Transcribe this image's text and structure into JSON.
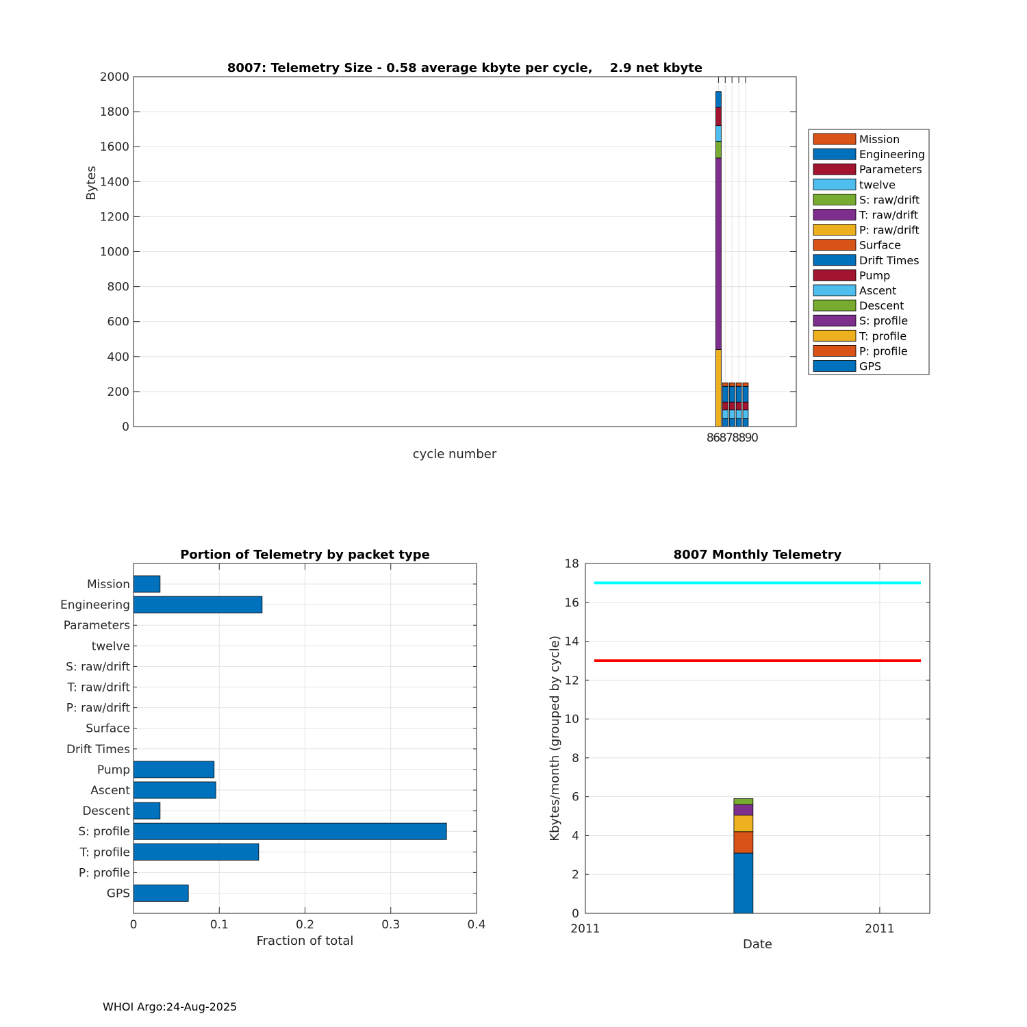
{
  "footer": "WHOI Argo:24-Aug-2025",
  "chart_data": [
    {
      "type": "bar",
      "stacked": true,
      "title": "8007: Telemetry Size - 0.58 average kbyte per cycle,    2.9 net kbyte",
      "xlabel": "cycle number",
      "ylabel": "Bytes",
      "ylim": [
        0,
        2000
      ],
      "yticks": [
        0,
        200,
        400,
        600,
        800,
        1000,
        1200,
        1400,
        1600,
        1800,
        2000
      ],
      "xlim": [
        -0.5,
        97.5
      ],
      "xtick_labels": [
        {
          "x": 86,
          "label": "86"
        },
        {
          "x": 87,
          "label": "87"
        },
        {
          "x": 88,
          "label": "88"
        },
        {
          "x": 89,
          "label": "89"
        },
        {
          "x": 90,
          "label": "90"
        }
      ],
      "xtick_display": "86878890",
      "legend_position": "outside-right",
      "series_order": [
        "GPS",
        "P: profile",
        "T: profile",
        "S: profile",
        "Descent",
        "Ascent",
        "Pump",
        "Drift Times",
        "Surface",
        "P: raw/drift",
        "T: raw/drift",
        "S: raw/drift",
        "twelve",
        "Parameters",
        "Engineering",
        "Mission"
      ],
      "legend": [
        {
          "name": "Mission",
          "color": "#D95319"
        },
        {
          "name": "Engineering",
          "color": "#0072BD"
        },
        {
          "name": "Parameters",
          "color": "#A2142F"
        },
        {
          "name": "twelve",
          "color": "#4DBEEE"
        },
        {
          "name": "S: raw/drift",
          "color": "#77AC30"
        },
        {
          "name": "T: raw/drift",
          "color": "#7E2F8E"
        },
        {
          "name": "P: raw/drift",
          "color": "#EDB120"
        },
        {
          "name": "Surface",
          "color": "#D95319"
        },
        {
          "name": "Drift Times",
          "color": "#0072BD"
        },
        {
          "name": "Pump",
          "color": "#A2142F"
        },
        {
          "name": "Ascent",
          "color": "#4DBEEE"
        },
        {
          "name": "Descent",
          "color": "#77AC30"
        },
        {
          "name": "S: profile",
          "color": "#7E2F8E"
        },
        {
          "name": "T: profile",
          "color": "#EDB120"
        },
        {
          "name": "P: profile",
          "color": "#D95319"
        },
        {
          "name": "GPS",
          "color": "#0072BD"
        }
      ],
      "bars": [
        {
          "cycle": 86,
          "segments": [
            {
              "name": "T: profile",
              "value": 440,
              "color": "#EDB120"
            },
            {
              "name": "S: profile",
              "value": 1095,
              "color": "#7E2F8E"
            },
            {
              "name": "Descent",
              "value": 95,
              "color": "#77AC30"
            },
            {
              "name": "Ascent",
              "value": 90,
              "color": "#4DBEEE"
            },
            {
              "name": "Pump",
              "value": 105,
              "color": "#A2142F"
            },
            {
              "name": "Drift Times",
              "value": 90,
              "color": "#0072BD"
            }
          ]
        },
        {
          "cycle": 87,
          "segments": [
            {
              "name": "GPS",
              "value": 45,
              "color": "#0072BD"
            },
            {
              "name": "Ascent",
              "value": 50,
              "color": "#4DBEEE"
            },
            {
              "name": "Pump",
              "value": 45,
              "color": "#A2142F"
            },
            {
              "name": "Engineering",
              "value": 90,
              "color": "#0072BD"
            },
            {
              "name": "Mission",
              "value": 20,
              "color": "#D95319"
            }
          ]
        },
        {
          "cycle": 88,
          "segments": [
            {
              "name": "GPS",
              "value": 45,
              "color": "#0072BD"
            },
            {
              "name": "Ascent",
              "value": 50,
              "color": "#4DBEEE"
            },
            {
              "name": "Pump",
              "value": 45,
              "color": "#A2142F"
            },
            {
              "name": "Engineering",
              "value": 90,
              "color": "#0072BD"
            },
            {
              "name": "Mission",
              "value": 20,
              "color": "#D95319"
            }
          ]
        },
        {
          "cycle": 89,
          "segments": [
            {
              "name": "GPS",
              "value": 45,
              "color": "#0072BD"
            },
            {
              "name": "Ascent",
              "value": 50,
              "color": "#4DBEEE"
            },
            {
              "name": "Pump",
              "value": 45,
              "color": "#A2142F"
            },
            {
              "name": "Engineering",
              "value": 90,
              "color": "#0072BD"
            },
            {
              "name": "Mission",
              "value": 20,
              "color": "#D95319"
            }
          ]
        },
        {
          "cycle": 90,
          "segments": [
            {
              "name": "GPS",
              "value": 45,
              "color": "#0072BD"
            },
            {
              "name": "Ascent",
              "value": 50,
              "color": "#4DBEEE"
            },
            {
              "name": "Pump",
              "value": 45,
              "color": "#A2142F"
            },
            {
              "name": "Engineering",
              "value": 90,
              "color": "#0072BD"
            },
            {
              "name": "Mission",
              "value": 20,
              "color": "#D95319"
            }
          ]
        }
      ]
    },
    {
      "type": "bar",
      "orientation": "horizontal",
      "title": "Portion of Telemetry by packet type",
      "xlabel": "Fraction of total",
      "ylabel": "",
      "xlim": [
        0,
        0.4
      ],
      "xticks": [
        0,
        0.1,
        0.2,
        0.3,
        0.4
      ],
      "xtick_labels": [
        "0",
        "0.1",
        "0.2",
        "0.3",
        "0.4"
      ],
      "bar_color": "#0072BD",
      "categories": [
        "Mission",
        "Engineering",
        "Parameters",
        "twelve",
        "S: raw/drift",
        "T: raw/drift",
        "P: raw/drift",
        "Surface",
        "Drift Times",
        "Pump",
        "Ascent",
        "Descent",
        "S: profile",
        "T: profile",
        "P: profile",
        "GPS"
      ],
      "values": [
        0.031,
        0.15,
        0,
        0,
        0,
        0,
        0,
        0,
        0,
        0.094,
        0.096,
        0.031,
        0.365,
        0.146,
        0,
        0.064
      ]
    },
    {
      "type": "bar",
      "stacked": true,
      "title": "8007 Monthly Telemetry",
      "xlabel": "Date",
      "ylabel": "Kbytes/month (grouped by cycle)",
      "ylim": [
        0,
        18
      ],
      "yticks": [
        0,
        2,
        4,
        6,
        8,
        10,
        12,
        14,
        16,
        18
      ],
      "xlim": [
        0,
        1.17
      ],
      "xtick_labels": [
        {
          "x": 0,
          "label": "2011"
        },
        {
          "x": 1,
          "label": "2011"
        }
      ],
      "reference_lines": [
        {
          "y": 17,
          "color": "#00FFFF"
        },
        {
          "y": 13,
          "color": "#FF0000"
        }
      ],
      "line_x_range": [
        0.03,
        1.14
      ],
      "bars": [
        {
          "x": 0.537,
          "width": 0.065,
          "segments": [
            {
              "value": 3.1,
              "color": "#0072BD"
            },
            {
              "value": 1.1,
              "color": "#D95319"
            },
            {
              "value": 0.85,
              "color": "#EDB120"
            },
            {
              "value": 0.55,
              "color": "#7E2F8E"
            },
            {
              "value": 0.3,
              "color": "#77AC30"
            }
          ]
        }
      ]
    }
  ]
}
